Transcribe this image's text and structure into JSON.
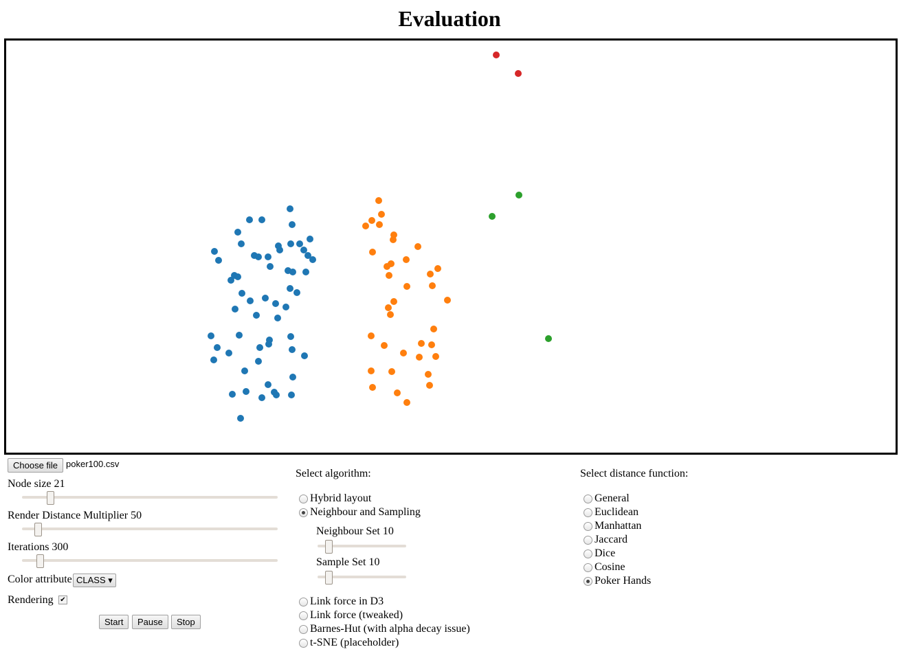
{
  "header": {
    "title": "Evaluation"
  },
  "controls": {
    "file_button": "Choose file",
    "file_name": "poker100.csv",
    "node_size": "Node size 21",
    "render_distance": "Render Distance Multiplier 50",
    "iterations": "Iterations 300",
    "color_attribute": "Color attribute",
    "color_attribute_value": "CLASS",
    "rendering": "Rendering",
    "rendering_checked": true,
    "buttons": [
      "Start",
      "Pause",
      "Stop"
    ]
  },
  "algorithm": {
    "heading": "Select algorithm:",
    "options": [
      {
        "label": "Hybrid layout",
        "checked": false
      },
      {
        "label": "Neighbour and Sampling",
        "checked": true
      }
    ],
    "neighbour_set": "Neighbour Set 10",
    "sample_set": "Sample Set 10",
    "more_options": [
      {
        "label": "Link force in D3",
        "checked": false
      },
      {
        "label": "Link force (tweaked)",
        "checked": false
      },
      {
        "label": "Barnes-Hut (with alpha decay issue)",
        "checked": false
      },
      {
        "label": "t-SNE (placeholder)",
        "checked": false
      }
    ]
  },
  "distance": {
    "heading": "Select distance function:",
    "options": [
      {
        "label": "General",
        "checked": false
      },
      {
        "label": "Euclidean",
        "checked": false
      },
      {
        "label": "Manhattan",
        "checked": false
      },
      {
        "label": "Jaccard",
        "checked": false
      },
      {
        "label": "Dice",
        "checked": false
      },
      {
        "label": "Cosine",
        "checked": false
      },
      {
        "label": "Poker Hands",
        "checked": true
      }
    ]
  }
}
